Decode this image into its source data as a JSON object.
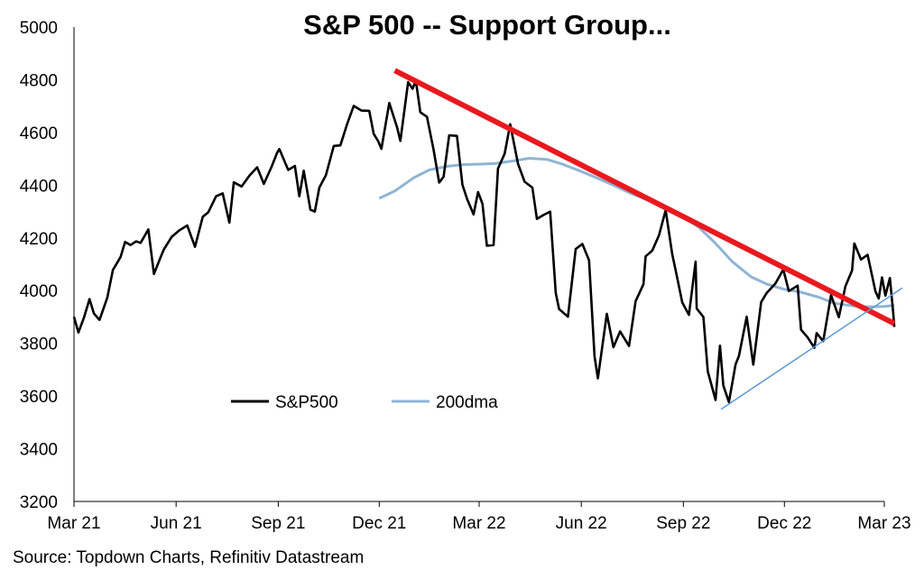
{
  "chart_data": {
    "type": "line",
    "title": "S&P 500 -- Support Group...",
    "source": "Source: Topdown Charts, Refinitiv Datastream",
    "ylim": [
      3200,
      5000
    ],
    "yticks": [
      3200,
      3400,
      3600,
      3800,
      4000,
      4200,
      4400,
      4600,
      4800,
      5000
    ],
    "xlim": [
      "2021-03-01",
      "2023-03-01"
    ],
    "xticks": [
      {
        "date": "2021-03-01",
        "label": "Mar 21"
      },
      {
        "date": "2021-06-01",
        "label": "Jun 21"
      },
      {
        "date": "2021-09-01",
        "label": "Sep 21"
      },
      {
        "date": "2021-12-01",
        "label": "Dec 21"
      },
      {
        "date": "2022-03-01",
        "label": "Mar 22"
      },
      {
        "date": "2022-06-01",
        "label": "Jun 22"
      },
      {
        "date": "2022-09-01",
        "label": "Sep 22"
      },
      {
        "date": "2022-12-01",
        "label": "Dec 22"
      },
      {
        "date": "2023-03-01",
        "label": "Mar 23"
      }
    ],
    "grid": false,
    "legend_position": "lower-left",
    "series": [
      {
        "name": "S&P500",
        "color": "#000000",
        "points": [
          [
            "2021-03-01",
            3900
          ],
          [
            "2021-03-05",
            3841
          ],
          [
            "2021-03-10",
            3898
          ],
          [
            "2021-03-15",
            3968
          ],
          [
            "2021-03-19",
            3913
          ],
          [
            "2021-03-24",
            3889
          ],
          [
            "2021-03-31",
            3973
          ],
          [
            "2021-04-05",
            4078
          ],
          [
            "2021-04-12",
            4128
          ],
          [
            "2021-04-16",
            4185
          ],
          [
            "2021-04-21",
            4173
          ],
          [
            "2021-04-26",
            4187
          ],
          [
            "2021-04-30",
            4181
          ],
          [
            "2021-05-07",
            4232
          ],
          [
            "2021-05-12",
            4063
          ],
          [
            "2021-05-18",
            4127
          ],
          [
            "2021-05-21",
            4156
          ],
          [
            "2021-05-28",
            4204
          ],
          [
            "2021-06-04",
            4229
          ],
          [
            "2021-06-11",
            4247
          ],
          [
            "2021-06-18",
            4166
          ],
          [
            "2021-06-25",
            4280
          ],
          [
            "2021-06-30",
            4297
          ],
          [
            "2021-07-07",
            4358
          ],
          [
            "2021-07-13",
            4369
          ],
          [
            "2021-07-19",
            4258
          ],
          [
            "2021-07-23",
            4411
          ],
          [
            "2021-07-30",
            4395
          ],
          [
            "2021-08-06",
            4436
          ],
          [
            "2021-08-13",
            4468
          ],
          [
            "2021-08-19",
            4405
          ],
          [
            "2021-08-26",
            4470
          ],
          [
            "2021-08-31",
            4523
          ],
          [
            "2021-09-02",
            4537
          ],
          [
            "2021-09-10",
            4458
          ],
          [
            "2021-09-16",
            4473
          ],
          [
            "2021-09-20",
            4358
          ],
          [
            "2021-09-24",
            4455
          ],
          [
            "2021-09-30",
            4307
          ],
          [
            "2021-10-04",
            4300
          ],
          [
            "2021-10-08",
            4391
          ],
          [
            "2021-10-14",
            4438
          ],
          [
            "2021-10-21",
            4549
          ],
          [
            "2021-10-27",
            4551
          ],
          [
            "2021-11-02",
            4631
          ],
          [
            "2021-11-08",
            4701
          ],
          [
            "2021-11-15",
            4683
          ],
          [
            "2021-11-22",
            4682
          ],
          [
            "2021-11-26",
            4595
          ],
          [
            "2021-11-30",
            4567
          ],
          [
            "2021-12-03",
            4538
          ],
          [
            "2021-12-10",
            4712
          ],
          [
            "2021-12-17",
            4620
          ],
          [
            "2021-12-20",
            4568
          ],
          [
            "2021-12-27",
            4791
          ],
          [
            "2021-12-31",
            4766
          ],
          [
            "2022-01-03",
            4796
          ],
          [
            "2022-01-07",
            4677
          ],
          [
            "2022-01-13",
            4659
          ],
          [
            "2022-01-19",
            4533
          ],
          [
            "2022-01-24",
            4410
          ],
          [
            "2022-01-28",
            4432
          ],
          [
            "2022-02-02",
            4589
          ],
          [
            "2022-02-09",
            4587
          ],
          [
            "2022-02-14",
            4401
          ],
          [
            "2022-02-18",
            4349
          ],
          [
            "2022-02-24",
            4289
          ],
          [
            "2022-02-28",
            4374
          ],
          [
            "2022-03-04",
            4329
          ],
          [
            "2022-03-08",
            4170
          ],
          [
            "2022-03-14",
            4173
          ],
          [
            "2022-03-18",
            4463
          ],
          [
            "2022-03-24",
            4520
          ],
          [
            "2022-03-29",
            4631
          ],
          [
            "2022-04-05",
            4481
          ],
          [
            "2022-04-11",
            4413
          ],
          [
            "2022-04-18",
            4391
          ],
          [
            "2022-04-22",
            4272
          ],
          [
            "2022-04-28",
            4287
          ],
          [
            "2022-05-04",
            4300
          ],
          [
            "2022-05-09",
            3991
          ],
          [
            "2022-05-12",
            3930
          ],
          [
            "2022-05-20",
            3901
          ],
          [
            "2022-05-27",
            4158
          ],
          [
            "2022-06-02",
            4177
          ],
          [
            "2022-06-08",
            4115
          ],
          [
            "2022-06-13",
            3750
          ],
          [
            "2022-06-16",
            3667
          ],
          [
            "2022-06-24",
            3912
          ],
          [
            "2022-06-30",
            3785
          ],
          [
            "2022-07-06",
            3845
          ],
          [
            "2022-07-14",
            3790
          ],
          [
            "2022-07-20",
            3960
          ],
          [
            "2022-07-27",
            4024
          ],
          [
            "2022-07-29",
            4130
          ],
          [
            "2022-08-04",
            4152
          ],
          [
            "2022-08-10",
            4210
          ],
          [
            "2022-08-16",
            4305
          ],
          [
            "2022-08-22",
            4138
          ],
          [
            "2022-08-26",
            4057
          ],
          [
            "2022-08-31",
            3955
          ],
          [
            "2022-09-06",
            3908
          ],
          [
            "2022-09-12",
            4110
          ],
          [
            "2022-09-13",
            3932
          ],
          [
            "2022-09-19",
            3900
          ],
          [
            "2022-09-23",
            3693
          ],
          [
            "2022-09-30",
            3585
          ],
          [
            "2022-10-04",
            3791
          ],
          [
            "2022-10-07",
            3640
          ],
          [
            "2022-10-12",
            3577
          ],
          [
            "2022-10-18",
            3720
          ],
          [
            "2022-10-21",
            3752
          ],
          [
            "2022-10-28",
            3901
          ],
          [
            "2022-11-03",
            3719
          ],
          [
            "2022-11-10",
            3956
          ],
          [
            "2022-11-15",
            3991
          ],
          [
            "2022-11-23",
            4027
          ],
          [
            "2022-11-30",
            4080
          ],
          [
            "2022-12-05",
            3998
          ],
          [
            "2022-12-13",
            4019
          ],
          [
            "2022-12-16",
            3852
          ],
          [
            "2022-12-22",
            3822
          ],
          [
            "2022-12-28",
            3783
          ],
          [
            "2022-12-30",
            3839
          ],
          [
            "2023-01-05",
            3808
          ],
          [
            "2023-01-12",
            3983
          ],
          [
            "2023-01-19",
            3899
          ],
          [
            "2023-01-25",
            4016
          ],
          [
            "2023-01-31",
            4077
          ],
          [
            "2023-02-02",
            4179
          ],
          [
            "2023-02-08",
            4118
          ],
          [
            "2023-02-14",
            4136
          ],
          [
            "2023-02-21",
            3997
          ],
          [
            "2023-02-24",
            3970
          ],
          [
            "2023-02-27",
            4050
          ],
          [
            "2023-03-02",
            3981
          ],
          [
            "2023-03-06",
            4048
          ],
          [
            "2023-03-09",
            3919
          ],
          [
            "2023-03-10",
            3862
          ]
        ]
      },
      {
        "name": "200dma",
        "color": "#8fb4d4",
        "points": [
          [
            "2021-12-01",
            4350
          ],
          [
            "2021-12-15",
            4378
          ],
          [
            "2022-01-01",
            4428
          ],
          [
            "2022-01-15",
            4458
          ],
          [
            "2022-02-01",
            4472
          ],
          [
            "2022-02-15",
            4478
          ],
          [
            "2022-03-01",
            4480
          ],
          [
            "2022-03-15",
            4482
          ],
          [
            "2022-04-01",
            4492
          ],
          [
            "2022-04-15",
            4502
          ],
          [
            "2022-05-01",
            4498
          ],
          [
            "2022-05-15",
            4480
          ],
          [
            "2022-06-01",
            4452
          ],
          [
            "2022-06-15",
            4428
          ],
          [
            "2022-07-01",
            4398
          ],
          [
            "2022-07-15",
            4370
          ],
          [
            "2022-08-01",
            4342
          ],
          [
            "2022-08-15",
            4314
          ],
          [
            "2022-09-01",
            4280
          ],
          [
            "2022-09-15",
            4240
          ],
          [
            "2022-10-01",
            4175
          ],
          [
            "2022-10-15",
            4110
          ],
          [
            "2022-11-01",
            4052
          ],
          [
            "2022-11-15",
            4025
          ],
          [
            "2022-12-01",
            4005
          ],
          [
            "2022-12-15",
            3995
          ],
          [
            "2023-01-01",
            3975
          ],
          [
            "2023-01-15",
            3952
          ],
          [
            "2023-02-01",
            3942
          ],
          [
            "2023-02-15",
            3938
          ],
          [
            "2023-03-01",
            3940
          ],
          [
            "2023-03-10",
            3944
          ]
        ]
      }
    ],
    "annotations": [
      {
        "kind": "trendline",
        "color": "#e8191e",
        "from": [
          "2021-12-15",
          4835
        ],
        "to": [
          "2023-03-10",
          3875
        ]
      },
      {
        "kind": "trendline",
        "color": "#5b9bd5",
        "from": [
          "2022-10-05",
          3550
        ],
        "to": [
          "2023-03-20",
          4010
        ]
      }
    ]
  }
}
